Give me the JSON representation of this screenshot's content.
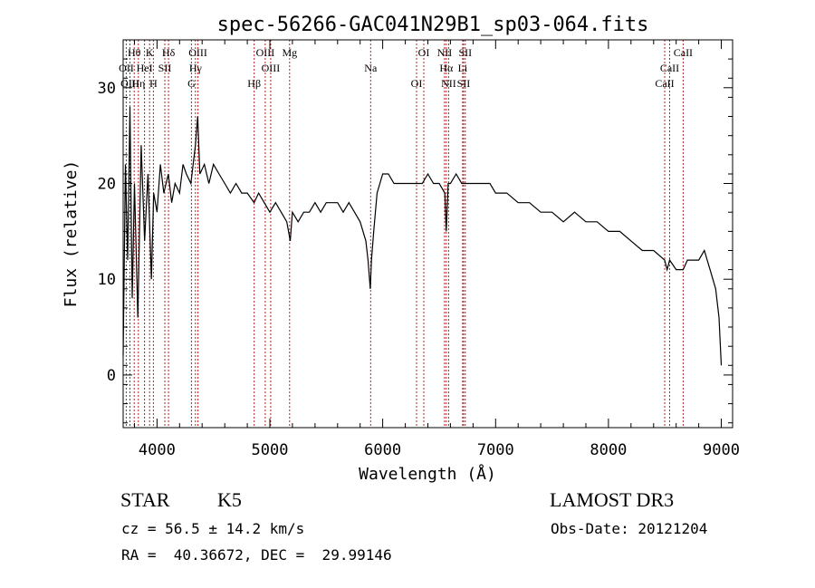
{
  "chart_data": {
    "type": "line",
    "title": "spec-56266-GAC041N29B1_sp03-064.fits",
    "xlabel": "Wavelength (Å)",
    "ylabel": "Flux (relative)",
    "xlim": [
      3700,
      9100
    ],
    "ylim": [
      -5.5,
      35
    ],
    "xticks": [
      4000,
      5000,
      6000,
      7000,
      8000,
      9000
    ],
    "yticks": [
      0,
      10,
      20,
      30
    ],
    "line_color": "#000000",
    "marker_color": "#b22222",
    "spectrum": {
      "x": [
        3700,
        3720,
        3740,
        3760,
        3780,
        3800,
        3830,
        3860,
        3890,
        3920,
        3950,
        3970,
        4000,
        4030,
        4060,
        4100,
        4130,
        4160,
        4200,
        4230,
        4260,
        4300,
        4340,
        4360,
        4380,
        4420,
        4460,
        4500,
        4550,
        4600,
        4650,
        4700,
        4750,
        4800,
        4860,
        4900,
        4950,
        5000,
        5050,
        5100,
        5150,
        5180,
        5200,
        5250,
        5300,
        5350,
        5400,
        5450,
        5500,
        5550,
        5600,
        5650,
        5700,
        5750,
        5800,
        5850,
        5870,
        5890,
        5900,
        5920,
        5950,
        6000,
        6050,
        6100,
        6150,
        6200,
        6250,
        6300,
        6350,
        6400,
        6450,
        6500,
        6550,
        6563,
        6580,
        6600,
        6650,
        6700,
        6750,
        6800,
        6850,
        6900,
        6950,
        7000,
        7100,
        7200,
        7300,
        7400,
        7500,
        7600,
        7700,
        7800,
        7900,
        8000,
        8100,
        8200,
        8300,
        8400,
        8498,
        8520,
        8542,
        8600,
        8662,
        8700,
        8750,
        8800,
        8850,
        8900,
        8950,
        8980,
        9000
      ],
      "y": [
        2,
        22,
        12,
        28,
        8,
        20,
        6,
        24,
        14,
        21,
        10,
        19,
        17,
        22,
        19,
        21,
        18,
        20,
        19,
        22,
        21,
        20,
        24,
        27,
        21,
        22,
        20,
        22,
        21,
        20,
        19,
        20,
        19,
        19,
        18,
        19,
        18,
        17,
        18,
        17,
        16,
        14,
        17,
        16,
        17,
        17,
        18,
        17,
        18,
        18,
        18,
        17,
        18,
        17,
        16,
        14,
        12,
        9,
        12,
        15,
        19,
        21,
        21,
        20,
        20,
        20,
        20,
        20,
        20,
        21,
        20,
        20,
        19,
        15,
        20,
        20,
        21,
        20,
        20,
        20,
        20,
        20,
        20,
        19,
        19,
        18,
        18,
        17,
        17,
        16,
        17,
        16,
        16,
        15,
        15,
        14,
        13,
        13,
        12,
        11,
        12,
        11,
        11,
        12,
        12,
        12,
        13,
        11,
        9,
        6,
        1
      ]
    },
    "lines": [
      {
        "name": "Hθ",
        "wave": 3798
      },
      {
        "name": "OII",
        "wave": 3727
      },
      {
        "name": "OIII",
        "wave": 3760
      },
      {
        "name": "K",
        "wave": 3934
      },
      {
        "name": "HeI",
        "wave": 3889
      },
      {
        "name": "Hη",
        "wave": 3835
      },
      {
        "name": "Hδ",
        "wave": 4102
      },
      {
        "name": "SII",
        "wave": 4069
      },
      {
        "name": "H",
        "wave": 3968
      },
      {
        "name": "OIII",
        "wave": 4363
      },
      {
        "name": "Hγ",
        "wave": 4340
      },
      {
        "name": "G",
        "wave": 4305
      },
      {
        "name": "OIII",
        "wave": 4959
      },
      {
        "name": "OIII",
        "wave": 5007
      },
      {
        "name": "Hβ",
        "wave": 4861
      },
      {
        "name": "Mg",
        "wave": 5175
      },
      {
        "name": "Na",
        "wave": 5893
      },
      {
        "name": "OI",
        "wave": 6300
      },
      {
        "name": "OI",
        "wave": 6364
      },
      {
        "name": "Hα",
        "wave": 6563
      },
      {
        "name": "SII",
        "wave": 6716
      },
      {
        "name": "NII",
        "wave": 6548
      },
      {
        "name": "Li",
        "wave": 6708
      },
      {
        "name": "NII",
        "wave": 6584
      },
      {
        "name": "SII",
        "wave": 6731
      },
      {
        "name": "CaII",
        "wave": 8542
      },
      {
        "name": "CaII",
        "wave": 8498
      },
      {
        "name": "CaII",
        "wave": 8662
      }
    ]
  },
  "info": {
    "star_class": "STAR",
    "subclass": "K5",
    "survey": "LAMOST DR3",
    "cz": "cz = 56.5 ± 14.2 km/s",
    "obs_date": "Obs-Date: 20121204",
    "coords": "RA =  40.36672, DEC =  29.99146"
  }
}
